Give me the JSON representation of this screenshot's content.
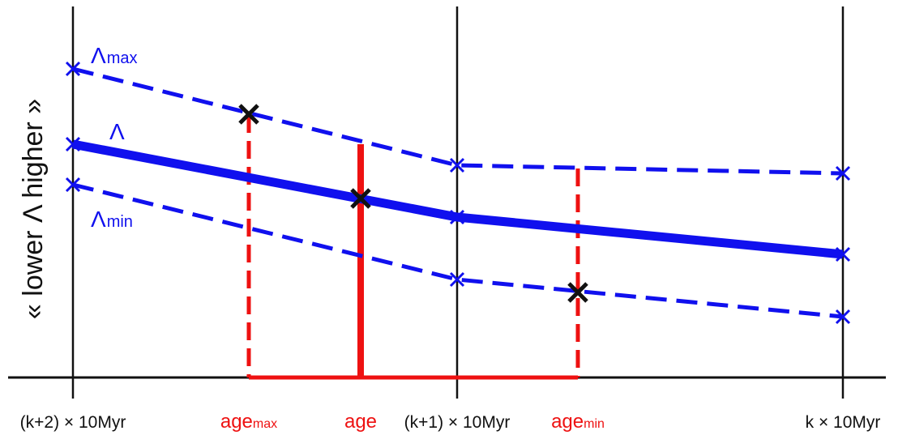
{
  "colors": {
    "lambda": "#1010ee",
    "age": "#ee1111",
    "axes": "#111111",
    "marker": "#111111"
  },
  "labels": {
    "y_axis": "« lower  Λ  higher »",
    "lambda_max": {
      "base": "Λ",
      "sub": "max"
    },
    "lambda": "Λ",
    "lambda_min": {
      "base": "Λ",
      "sub": "min"
    },
    "age_max": {
      "base": "age",
      "sub": "max"
    },
    "age": "age",
    "age_min": {
      "base": "age",
      "sub": "min"
    },
    "tick_k2": "(k+2) × 10Myr",
    "tick_k1": "(k+1) × 10Myr",
    "tick_k": "k × 10Myr"
  },
  "icons": {
    "grid_point": "blue-cross-icon",
    "intersection": "black-cross-icon"
  }
}
